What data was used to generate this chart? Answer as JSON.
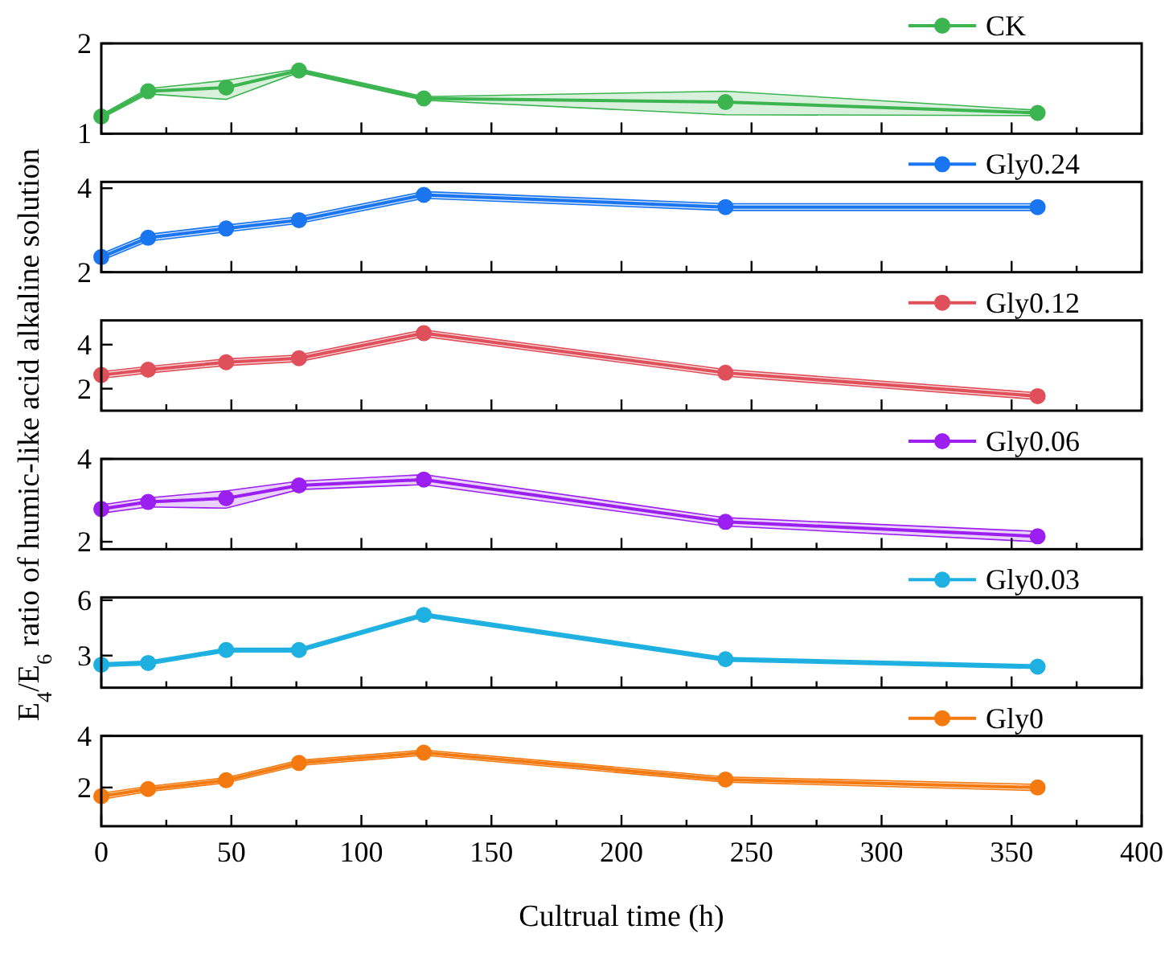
{
  "chart_data": [
    {
      "type": "line",
      "ylabel": "E$_{4}$/E$_{6}$ ratio of humic-like acid alkaline solution",
      "x": [
        0,
        18,
        48,
        76,
        124,
        240,
        360
      ],
      "xlim": [
        0,
        400
      ],
      "xticks": [
        {
          "value": 0,
          "label": null
        },
        {
          "value": 25,
          "label": null
        },
        {
          "value": 50,
          "label": null
        },
        {
          "value": 75,
          "label": null
        },
        {
          "value": 100,
          "label": null
        },
        {
          "value": 125,
          "label": null
        },
        {
          "value": 150,
          "label": null
        },
        {
          "value": 175,
          "label": null
        },
        {
          "value": 200,
          "label": null
        },
        {
          "value": 225,
          "label": null
        },
        {
          "value": 250,
          "label": null
        },
        {
          "value": 275,
          "label": null
        },
        {
          "value": 300,
          "label": null
        },
        {
          "value": 325,
          "label": null
        },
        {
          "value": 350,
          "label": null
        },
        {
          "value": 375,
          "label": null
        },
        {
          "value": 400,
          "label": null
        }
      ],
      "ylim": [
        1,
        2
      ],
      "yticks": [
        1,
        2
      ],
      "tick_labels": "y",
      "marker": "circle",
      "legend": "top right",
      "series": [
        {
          "name": "CK",
          "color": "#3cb550",
          "values": [
            1.19,
            1.47,
            1.51,
            1.7,
            1.39,
            1.35,
            1.23
          ],
          "lower": [
            1.17,
            1.44,
            1.38,
            1.68,
            1.37,
            1.21,
            1.2
          ],
          "upper": [
            1.21,
            1.5,
            1.59,
            1.72,
            1.41,
            1.47,
            1.26
          ]
        }
      ]
    },
    {
      "type": "line",
      "x": [
        0,
        18,
        48,
        76,
        124,
        240,
        360
      ],
      "xlim": [
        0,
        400
      ],
      "xticks": [
        {
          "value": 0,
          "label": null
        },
        {
          "value": 25,
          "label": null
        },
        {
          "value": 50,
          "label": null
        },
        {
          "value": 75,
          "label": null
        },
        {
          "value": 100,
          "label": null
        },
        {
          "value": 125,
          "label": null
        },
        {
          "value": 150,
          "label": null
        },
        {
          "value": 175,
          "label": null
        },
        {
          "value": 200,
          "label": null
        },
        {
          "value": 225,
          "label": null
        },
        {
          "value": 250,
          "label": null
        },
        {
          "value": 275,
          "label": null
        },
        {
          "value": 300,
          "label": null
        },
        {
          "value": 325,
          "label": null
        },
        {
          "value": 350,
          "label": null
        },
        {
          "value": 375,
          "label": null
        },
        {
          "value": 400,
          "label": null
        }
      ],
      "ylim": [
        2,
        4.15
      ],
      "yticks": [
        2,
        4
      ],
      "tick_labels": "y",
      "marker": "circle",
      "legend": "top right",
      "series": [
        {
          "name": "Gly0.24",
          "color": "#1a75f0",
          "values": [
            2.36,
            2.82,
            3.04,
            3.24,
            3.84,
            3.55,
            3.55
          ],
          "lower": [
            2.28,
            2.74,
            2.96,
            3.16,
            3.76,
            3.47,
            3.47
          ],
          "upper": [
            2.44,
            2.9,
            3.12,
            3.32,
            3.92,
            3.63,
            3.63
          ]
        }
      ]
    },
    {
      "type": "line",
      "x": [
        0,
        18,
        48,
        76,
        124,
        240,
        360
      ],
      "xlim": [
        0,
        400
      ],
      "xticks": [
        {
          "value": 0,
          "label": null
        },
        {
          "value": 25,
          "label": null
        },
        {
          "value": 50,
          "label": null
        },
        {
          "value": 75,
          "label": null
        },
        {
          "value": 100,
          "label": null
        },
        {
          "value": 125,
          "label": null
        },
        {
          "value": 150,
          "label": null
        },
        {
          "value": 175,
          "label": null
        },
        {
          "value": 200,
          "label": null
        },
        {
          "value": 225,
          "label": null
        },
        {
          "value": 250,
          "label": null
        },
        {
          "value": 275,
          "label": null
        },
        {
          "value": 300,
          "label": null
        },
        {
          "value": 325,
          "label": null
        },
        {
          "value": 350,
          "label": null
        },
        {
          "value": 375,
          "label": null
        },
        {
          "value": 400,
          "label": null
        }
      ],
      "ylim": [
        1,
        5.1
      ],
      "yticks": [
        2,
        4
      ],
      "tick_labels": "y",
      "marker": "circle",
      "legend": "top right",
      "series": [
        {
          "name": "Gly0.12",
          "color": "#e0505a",
          "values": [
            2.62,
            2.86,
            3.2,
            3.38,
            4.52,
            2.72,
            1.66
          ],
          "lower": [
            2.47,
            2.71,
            3.05,
            3.23,
            4.37,
            2.57,
            1.51
          ],
          "upper": [
            2.77,
            3.01,
            3.35,
            3.53,
            4.67,
            2.87,
            1.81
          ]
        }
      ]
    },
    {
      "type": "line",
      "x": [
        0,
        18,
        48,
        76,
        124,
        240,
        360
      ],
      "xlim": [
        0,
        400
      ],
      "xticks": [
        {
          "value": 0,
          "label": null
        },
        {
          "value": 25,
          "label": null
        },
        {
          "value": 50,
          "label": null
        },
        {
          "value": 75,
          "label": null
        },
        {
          "value": 100,
          "label": null
        },
        {
          "value": 125,
          "label": null
        },
        {
          "value": 150,
          "label": null
        },
        {
          "value": 175,
          "label": null
        },
        {
          "value": 200,
          "label": null
        },
        {
          "value": 225,
          "label": null
        },
        {
          "value": 250,
          "label": null
        },
        {
          "value": 275,
          "label": null
        },
        {
          "value": 300,
          "label": null
        },
        {
          "value": 325,
          "label": null
        },
        {
          "value": 350,
          "label": null
        },
        {
          "value": 375,
          "label": null
        },
        {
          "value": 400,
          "label": null
        }
      ],
      "ylim": [
        1.82,
        4
      ],
      "yticks": [
        2,
        4
      ],
      "tick_labels": "y",
      "marker": "circle",
      "legend": "top right",
      "series": [
        {
          "name": "Gly0.06",
          "color": "#9b1ff0",
          "values": [
            2.79,
            2.96,
            3.05,
            3.36,
            3.5,
            2.48,
            2.13
          ],
          "lower": [
            2.69,
            2.84,
            2.81,
            3.26,
            3.38,
            2.38,
            2.0
          ],
          "upper": [
            2.89,
            3.06,
            3.23,
            3.46,
            3.62,
            2.58,
            2.25
          ]
        }
      ]
    },
    {
      "type": "line",
      "x": [
        0,
        18,
        48,
        76,
        124,
        240,
        360
      ],
      "xlim": [
        0,
        400
      ],
      "xticks": [
        {
          "value": 0,
          "label": null
        },
        {
          "value": 25,
          "label": null
        },
        {
          "value": 50,
          "label": null
        },
        {
          "value": 75,
          "label": null
        },
        {
          "value": 100,
          "label": null
        },
        {
          "value": 125,
          "label": null
        },
        {
          "value": 150,
          "label": null
        },
        {
          "value": 175,
          "label": null
        },
        {
          "value": 200,
          "label": null
        },
        {
          "value": 225,
          "label": null
        },
        {
          "value": 250,
          "label": null
        },
        {
          "value": 275,
          "label": null
        },
        {
          "value": 300,
          "label": null
        },
        {
          "value": 325,
          "label": null
        },
        {
          "value": 350,
          "label": null
        },
        {
          "value": 375,
          "label": null
        },
        {
          "value": 400,
          "label": null
        }
      ],
      "ylim": [
        1.26,
        6.15
      ],
      "yticks": [
        3,
        6
      ],
      "tick_labels": "y",
      "marker": "circle",
      "legend": "top right",
      "series": [
        {
          "name": "Gly0.03",
          "color": "#1eb0e0",
          "values": [
            2.5,
            2.6,
            3.3,
            3.3,
            5.2,
            2.8,
            2.4
          ],
          "lower": [
            2.4,
            2.5,
            3.2,
            3.2,
            5.1,
            2.7,
            2.3
          ],
          "upper": [
            2.6,
            2.7,
            3.4,
            3.4,
            5.3,
            2.9,
            2.5
          ]
        }
      ]
    },
    {
      "type": "line",
      "xlabel": "Cultrual time (h)",
      "x": [
        0,
        18,
        48,
        76,
        124,
        240,
        360
      ],
      "xlim": [
        0,
        400
      ],
      "xticks": [
        0,
        {
          "value": 25,
          "label": null
        },
        50,
        {
          "value": 75,
          "label": null
        },
        100,
        {
          "value": 125,
          "label": null
        },
        150,
        {
          "value": 175,
          "label": null
        },
        200,
        {
          "value": 225,
          "label": null
        },
        250,
        {
          "value": 275,
          "label": null
        },
        300,
        {
          "value": 325,
          "label": null
        },
        350,
        {
          "value": 375,
          "label": null
        },
        400
      ],
      "ylim": [
        0.5,
        4
      ],
      "yticks": [
        2,
        4
      ],
      "marker": "circle",
      "legend": "top right",
      "series": [
        {
          "name": "Gly0",
          "color": "#f47a10",
          "values": [
            1.66,
            1.94,
            2.28,
            2.95,
            3.35,
            2.31,
            2.0
          ],
          "lower": [
            1.54,
            1.84,
            2.18,
            2.85,
            3.25,
            2.21,
            1.88
          ],
          "upper": [
            1.78,
            2.04,
            2.38,
            3.05,
            3.45,
            2.41,
            2.12
          ]
        }
      ]
    }
  ]
}
